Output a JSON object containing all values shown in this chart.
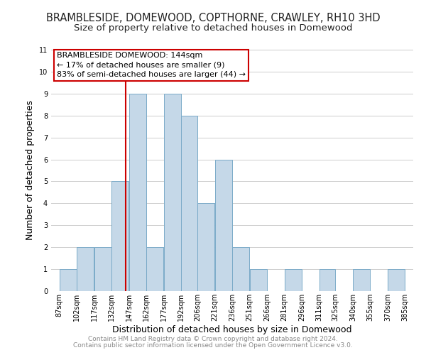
{
  "title": "BRAMBLESIDE, DOMEWOOD, COPTHORNE, CRAWLEY, RH10 3HD",
  "subtitle": "Size of property relative to detached houses in Domewood",
  "xlabel": "Distribution of detached houses by size in Domewood",
  "ylabel": "Number of detached properties",
  "bar_left_edges": [
    87,
    102,
    117,
    132,
    147,
    162,
    177,
    192,
    206,
    221,
    236,
    251,
    266,
    281,
    296,
    311,
    325,
    340,
    355,
    370
  ],
  "bar_widths": [
    15,
    15,
    15,
    15,
    15,
    15,
    15,
    14,
    15,
    15,
    15,
    15,
    15,
    15,
    15,
    14,
    15,
    15,
    15,
    15
  ],
  "bar_heights": [
    1,
    2,
    2,
    5,
    9,
    2,
    9,
    8,
    4,
    6,
    2,
    1,
    0,
    1,
    0,
    1,
    0,
    1,
    0,
    1
  ],
  "bar_color": "#c5d8e8",
  "bar_edgecolor": "#7aaac8",
  "xlim": [
    80,
    392
  ],
  "ylim": [
    0,
    11
  ],
  "yticks": [
    0,
    1,
    2,
    3,
    4,
    5,
    6,
    7,
    8,
    9,
    10,
    11
  ],
  "xtick_labels": [
    "87sqm",
    "102sqm",
    "117sqm",
    "132sqm",
    "147sqm",
    "162sqm",
    "177sqm",
    "192sqm",
    "206sqm",
    "221sqm",
    "236sqm",
    "251sqm",
    "266sqm",
    "281sqm",
    "296sqm",
    "311sqm",
    "325sqm",
    "340sqm",
    "355sqm",
    "370sqm",
    "385sqm"
  ],
  "xtick_positions": [
    87,
    102,
    117,
    132,
    147,
    162,
    177,
    192,
    206,
    221,
    236,
    251,
    266,
    281,
    296,
    311,
    325,
    340,
    355,
    370,
    385
  ],
  "vline_x": 144,
  "vline_color": "#cc0000",
  "annotation_text": "BRAMBLESIDE DOMEWOOD: 144sqm\n← 17% of detached houses are smaller (9)\n83% of semi-detached houses are larger (44) →",
  "annotation_box_color": "#ffffff",
  "annotation_box_edgecolor": "#cc0000",
  "footer_line1": "Contains HM Land Registry data © Crown copyright and database right 2024.",
  "footer_line2": "Contains public sector information licensed under the Open Government Licence v3.0.",
  "background_color": "#ffffff",
  "grid_color": "#cccccc",
  "title_fontsize": 10.5,
  "subtitle_fontsize": 9.5,
  "axis_label_fontsize": 9,
  "tick_fontsize": 7,
  "annotation_fontsize": 8,
  "footer_fontsize": 6.5
}
